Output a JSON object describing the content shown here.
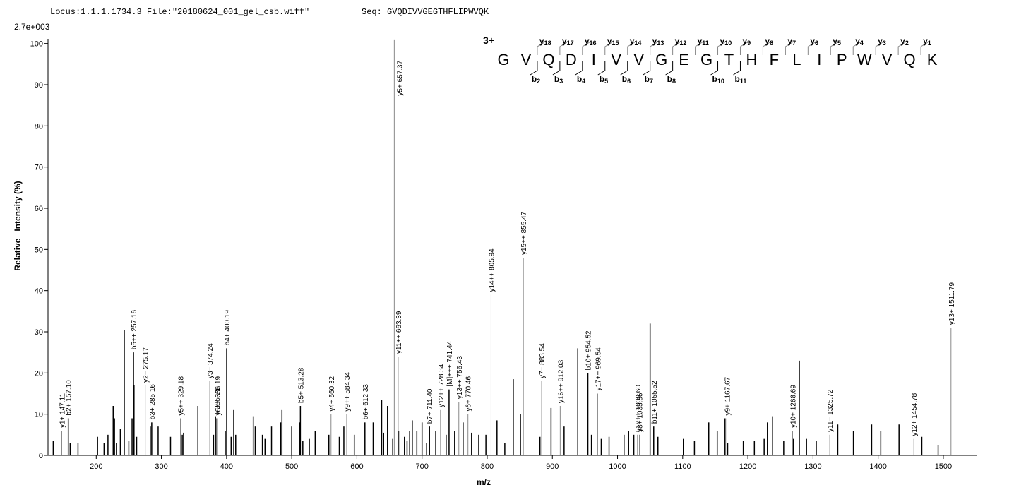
{
  "chart_data": {
    "type": "spectrum",
    "title": "Locus:1.1.1.1734.3 File:\"20180624_001_gel_csb.wiff\"",
    "subtitle": "Seq: GVQDIVVGEGTHFLIPWVQK",
    "intensity_scale": "2.7e+003",
    "x_label": "m/z",
    "y_label": "Relative   Intensity (%)",
    "xlim": [
      126,
      1551
    ],
    "ylim": [
      0,
      102
    ],
    "xticks": [
      200,
      300,
      400,
      500,
      600,
      700,
      800,
      900,
      1000,
      1100,
      1200,
      1300,
      1400,
      1500
    ],
    "yticks": [
      0,
      10,
      20,
      30,
      40,
      50,
      60,
      70,
      80,
      90,
      100
    ],
    "sequence": {
      "charge": "3+",
      "residues": [
        "G",
        "V",
        "Q",
        "D",
        "I",
        "V",
        "V",
        "G",
        "E",
        "G",
        "T",
        "H",
        "F",
        "L",
        "I",
        "P",
        "W",
        "V",
        "Q",
        "K"
      ],
      "y_ions": [
        "y18",
        "y17",
        "y16",
        "y15",
        "y14",
        "y13",
        "y12",
        "y11",
        "y10",
        "y9",
        "y8",
        "y7",
        "y6",
        "y5",
        "y4",
        "y3",
        "y2",
        "y1"
      ],
      "b_ions": [
        "b2",
        "b3",
        "b4",
        "b5",
        "b6",
        "b7",
        "b8",
        "b10",
        "b11"
      ]
    },
    "series": [
      {
        "color": "#000000",
        "x": [
          134,
          160,
          172,
          202,
          212,
          218,
          226,
          228,
          231,
          237,
          243,
          250,
          255,
          258,
          262,
          283,
          295,
          314,
          332,
          334,
          356,
          380,
          383,
          398,
          407,
          411,
          414,
          441,
          444,
          455,
          459,
          469,
          483,
          485,
          500,
          512,
          517,
          527,
          536,
          557,
          573,
          580,
          596,
          625,
          638,
          641,
          647,
          655,
          664,
          673,
          677,
          681,
          685,
          692,
          700,
          707,
          721,
          737,
          750,
          763,
          776,
          787,
          798,
          815,
          827,
          840,
          851,
          881,
          898,
          918,
          939,
          960,
          975,
          987,
          1010,
          1017,
          1025,
          1050,
          1062,
          1101,
          1118,
          1140,
          1153,
          1165,
          1169,
          1193,
          1210,
          1225,
          1230,
          1238,
          1255,
          1270,
          1279,
          1290,
          1305,
          1338,
          1362,
          1390,
          1404,
          1432,
          1467,
          1492
        ],
        "values": [
          3.5,
          3,
          3,
          4.5,
          3,
          5,
          12,
          9,
          3,
          6.5,
          30.5,
          3.5,
          9,
          17,
          4.5,
          7,
          7,
          4.5,
          5,
          5.5,
          12,
          5,
          9.5,
          6,
          4.5,
          11,
          5,
          9.5,
          7,
          5,
          4,
          7,
          8,
          11,
          7,
          8,
          3.5,
          4,
          6,
          5,
          4.5,
          7,
          5,
          8,
          13.5,
          5.5,
          12,
          4,
          6,
          4.5,
          3.5,
          6,
          8.5,
          6,
          8,
          3,
          6,
          5,
          6,
          8,
          5.5,
          5,
          5,
          8.5,
          3,
          18.5,
          10,
          4.5,
          11.5,
          7,
          26,
          5,
          4,
          4.5,
          5,
          6,
          5,
          32,
          4.5,
          4,
          3.5,
          8,
          6,
          9,
          3,
          3.5,
          3.5,
          4,
          8,
          9.5,
          3.5,
          4,
          23,
          4,
          3.5,
          7.5,
          6,
          7.5,
          6,
          7.5,
          4.5,
          2.5
        ]
      },
      {
        "color": "#000000",
        "x": [
          157.1,
          257.16,
          285.16,
          385.21,
          400.19,
          513.28,
          612.33,
          711.4,
          741.44,
          954.52,
          1055.52
        ],
        "values": [
          9,
          25,
          8,
          9,
          26,
          12,
          8,
          7,
          16,
          20,
          7
        ],
        "peak_labels": [
          "b2+ 157.10",
          "b5++ 257.16",
          "b3+ 285.16",
          "+ 385.21",
          "b4+ 400.19",
          "b5+ 513.28",
          "b6+ 612.33",
          "b7+ 711.40",
          "[M]+++ 741.44",
          "b10+ 954.52",
          "b11+ 1055.52"
        ]
      },
      {
        "color": "#888888",
        "x": [
          147.11,
          275.17,
          329.18,
          374.24,
          386.19,
          560.32,
          584.34,
          657.37,
          663.39,
          728.34,
          756.43,
          770.46,
          805.94,
          855.47,
          883.54,
          912.03,
          969.54,
          1030.6,
          1033.56,
          1167.67,
          1268.69,
          1325.72,
          1454.78,
          1511.79
        ],
        "values": [
          6,
          17,
          9,
          18,
          9,
          10,
          10,
          101,
          24,
          11,
          13,
          10,
          39,
          48,
          18,
          12,
          15,
          5,
          5,
          9,
          6,
          5,
          4,
          31
        ],
        "peak_labels": [
          "y1+ 147.11",
          "y2+ 275.17",
          "y5++ 329.18",
          "y3+ 374.24",
          "y6++ 386.19",
          "y4+ 560.32",
          "y9++ 584.34",
          "y5+ 657.37",
          "y11++ 663.39",
          "y12++ 728.34",
          "y13++ 756.43",
          "y6+ 770.46",
          "y14++ 805.94",
          "y15++ 855.47",
          "y7+ 883.54",
          "y16++ 912.03",
          "y17++ 969.54",
          "y18++ 1030.60",
          "y8+ 1033.56",
          "y9+ 1167.67",
          "y10+ 1268.69",
          "y11+ 1325.72",
          "y12+ 1454.78",
          "y13+ 1511.79"
        ]
      }
    ]
  }
}
